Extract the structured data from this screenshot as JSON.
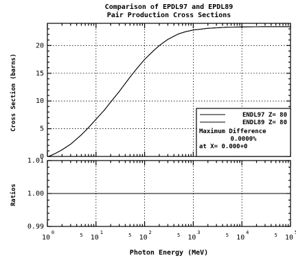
{
  "chart_data": {
    "type": "line",
    "title": "Comparison of EPDL97 and EPDL89",
    "subtitle": "Pair Production Cross Sections",
    "xlabel": "Photon Energy (MeV)",
    "xscale": "log",
    "xlim": [
      1,
      100000
    ],
    "x_major_ticks": [
      {
        "base": "10",
        "exp": "0",
        "value": 1
      },
      {
        "base": "10",
        "exp": "1",
        "value": 10
      },
      {
        "base": "10",
        "exp": "2",
        "value": 100
      },
      {
        "base": "10",
        "exp": "3",
        "value": 1000
      },
      {
        "base": "10",
        "exp": "4",
        "value": 10000
      },
      {
        "base": "10",
        "exp": "5",
        "value": 100000
      }
    ],
    "x_minor_label": "5",
    "grid": true,
    "top_panel": {
      "ylabel": "Cross Section (barns)",
      "ylim": [
        0,
        24
      ],
      "yticks": [
        0,
        5,
        10,
        15,
        20
      ],
      "series": [
        {
          "name": "ENDL97 Z= 80",
          "style": "solid",
          "x": [
            1.05,
            1.2,
            1.5,
            2,
            3,
            5,
            7,
            10,
            15,
            20,
            30,
            50,
            70,
            100,
            150,
            200,
            300,
            500,
            700,
            1000,
            2000,
            5000,
            10000,
            30000,
            100000
          ],
          "y": [
            0.0,
            0.2,
            0.6,
            1.2,
            2.2,
            3.9,
            5.2,
            6.7,
            8.4,
            9.8,
            11.7,
            14.3,
            15.9,
            17.5,
            19.0,
            20.0,
            21.1,
            22.1,
            22.5,
            22.8,
            23.1,
            23.3,
            23.35,
            23.4,
            23.4
          ]
        },
        {
          "name": "ENDL89 Z= 80",
          "style": "solid",
          "x": [
            1.05,
            1.2,
            1.5,
            2,
            3,
            5,
            7,
            10,
            15,
            20,
            30,
            50,
            70,
            100,
            150,
            200,
            300,
            500,
            700,
            1000,
            2000,
            5000,
            10000,
            30000,
            100000
          ],
          "y": [
            0.0,
            0.2,
            0.6,
            1.2,
            2.2,
            3.9,
            5.2,
            6.7,
            8.4,
            9.8,
            11.7,
            14.3,
            15.9,
            17.5,
            19.0,
            20.0,
            21.1,
            22.1,
            22.5,
            22.8,
            23.1,
            23.3,
            23.35,
            23.4,
            23.4
          ]
        }
      ],
      "legend_placement": "lower-right",
      "legend_notes": [
        "Maximum Difference",
        "0.0000%",
        "at X= 0.000+0"
      ]
    },
    "bottom_panel": {
      "ylabel": "Ratios",
      "ylim": [
        0.99,
        1.01
      ],
      "yticks": [
        {
          "value": 0.99,
          "label": "0.99"
        },
        {
          "value": 1.0,
          "label": "1.00"
        },
        {
          "value": 1.01,
          "label": "1.01"
        }
      ],
      "series": [
        {
          "name": "Ratio",
          "x": [
            1,
            100000
          ],
          "y": [
            1.0,
            1.0
          ]
        }
      ]
    }
  }
}
